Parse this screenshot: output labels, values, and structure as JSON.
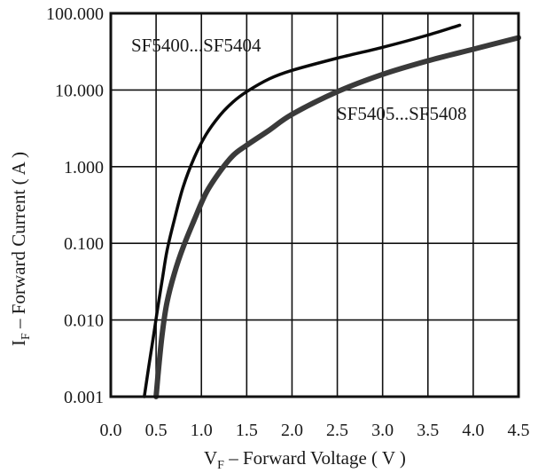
{
  "chart_data": {
    "type": "line",
    "x_axis": {
      "label_main": "V",
      "label_sub": "F",
      "label_rest": " – Forward Voltage ( V )",
      "range": [
        0,
        4.5
      ],
      "ticks": [
        {
          "value": 0,
          "label": "0.0"
        },
        {
          "value": 0.5,
          "label": "0.5"
        },
        {
          "value": 1.0,
          "label": "1.0"
        },
        {
          "value": 1.5,
          "label": "1.5"
        },
        {
          "value": 2.0,
          "label": "2.0"
        },
        {
          "value": 2.5,
          "label": "2.5"
        },
        {
          "value": 3.0,
          "label": "3.0"
        },
        {
          "value": 3.5,
          "label": "3.5"
        },
        {
          "value": 4.0,
          "label": "4.0"
        },
        {
          "value": 4.5,
          "label": "4.5"
        }
      ]
    },
    "y_axis": {
      "label_main": "I",
      "label_sub": "F",
      "label_rest": " – Forward Current ( A )",
      "scale": "log",
      "range": [
        0.001,
        100
      ],
      "ticks": [
        {
          "value": 0.001,
          "label": "0.001"
        },
        {
          "value": 0.01,
          "label": "0.010"
        },
        {
          "value": 0.1,
          "label": "0.100"
        },
        {
          "value": 1,
          "label": "1.000"
        },
        {
          "value": 10,
          "label": "10.000"
        },
        {
          "value": 100,
          "label": "100.000"
        }
      ]
    },
    "grid": true,
    "series": [
      {
        "name": "SF5400...SF5404",
        "color": "#0a0a0a",
        "points": [
          [
            0.37,
            0.001
          ],
          [
            0.42,
            0.0025
          ],
          [
            0.47,
            0.006
          ],
          [
            0.52,
            0.015
          ],
          [
            0.57,
            0.035
          ],
          [
            0.62,
            0.08
          ],
          [
            0.7,
            0.2
          ],
          [
            0.8,
            0.55
          ],
          [
            0.92,
            1.3
          ],
          [
            1.05,
            2.6
          ],
          [
            1.2,
            4.6
          ],
          [
            1.35,
            7.0
          ],
          [
            1.5,
            9.5
          ],
          [
            1.75,
            14
          ],
          [
            2.0,
            18
          ],
          [
            2.5,
            26
          ],
          [
            3.0,
            36
          ],
          [
            3.5,
            52
          ],
          [
            3.85,
            70
          ]
        ]
      },
      {
        "name": "SF5405...SF5408",
        "color": "#3a3a3a",
        "points": [
          [
            0.5,
            0.001
          ],
          [
            0.53,
            0.0025
          ],
          [
            0.57,
            0.007
          ],
          [
            0.62,
            0.017
          ],
          [
            0.7,
            0.04
          ],
          [
            0.8,
            0.09
          ],
          [
            0.92,
            0.2
          ],
          [
            1.05,
            0.45
          ],
          [
            1.2,
            0.85
          ],
          [
            1.35,
            1.4
          ],
          [
            1.5,
            1.9
          ],
          [
            1.75,
            3.0
          ],
          [
            2.0,
            4.8
          ],
          [
            2.5,
            9.5
          ],
          [
            3.0,
            16
          ],
          [
            3.5,
            24
          ],
          [
            4.0,
            34
          ],
          [
            4.5,
            48
          ]
        ]
      }
    ]
  }
}
